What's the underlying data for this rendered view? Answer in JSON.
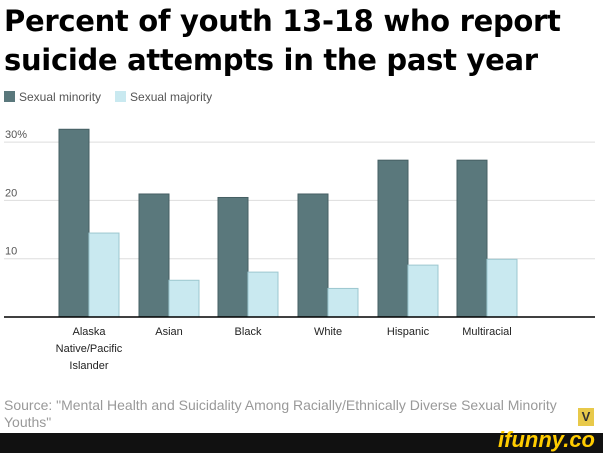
{
  "chart_data": {
    "type": "bar",
    "title": "Percent of youth 13-18 who report suicide attempts in the past year",
    "categories": [
      "Alaska Native/Pacific Islander",
      "Asian",
      "Black",
      "White",
      "Hispanic",
      "Multiracial"
    ],
    "category_lines": [
      [
        "Alaska",
        "Native/Pacific",
        "Islander"
      ],
      [
        "Asian"
      ],
      [
        "Black"
      ],
      [
        "White"
      ],
      [
        "Hispanic"
      ],
      [
        "Multiracial"
      ]
    ],
    "series": [
      {
        "name": "Sexual minority",
        "color": "#5a787c",
        "values": [
          32.2,
          21.1,
          20.5,
          21.1,
          26.9,
          26.9
        ]
      },
      {
        "name": "Sexual majority",
        "color": "#c9e9f0",
        "values": [
          14.4,
          6.3,
          7.7,
          4.9,
          8.9,
          9.9
        ]
      }
    ],
    "yticks": [
      {
        "value": 10,
        "label": "10"
      },
      {
        "value": 20,
        "label": "20"
      },
      {
        "value": 30,
        "label": "30%"
      }
    ],
    "ylim": [
      0,
      33
    ],
    "grid": true,
    "legend": "top-left",
    "xlabel": "",
    "ylabel": ""
  },
  "title_lines": [
    "Percent of youth 13-18 who report",
    "suicide attempts in the past year"
  ],
  "source": "Source: \"Mental Health and Suicidality Among Racially/Ethnically Diverse Sexual Minority Youths\"",
  "watermark": "ifunny.co",
  "badge": "V"
}
